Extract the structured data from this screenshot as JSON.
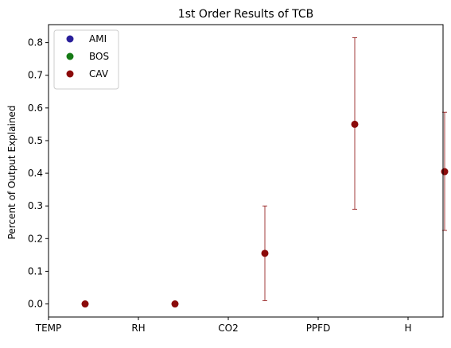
{
  "chart_data": {
    "type": "scatter",
    "title": "1st Order Results of TCB",
    "xlabel": "",
    "ylabel": "Percent of Output Explained",
    "categories": [
      "TEMP",
      "RH",
      "CO2",
      "PPFD",
      "H"
    ],
    "yticks": [
      "0.0",
      "0.1",
      "0.2",
      "0.3",
      "0.4",
      "0.5",
      "0.6",
      "0.7",
      "0.8"
    ],
    "ylim": [
      -0.04,
      0.855
    ],
    "grid": false,
    "legend_position": "top-left",
    "series": [
      {
        "name": "AMI",
        "color": "#2a1f9a",
        "points": []
      },
      {
        "name": "BOS",
        "color": "#157a15",
        "points": []
      },
      {
        "name": "CAV",
        "color": "#8b0a0a",
        "points": [
          {
            "x": "TEMP",
            "y": 0.0,
            "err_low": 0.0,
            "err_high": 0.0
          },
          {
            "x": "RH",
            "y": 0.0,
            "err_low": 0.0,
            "err_high": 0.0
          },
          {
            "x": "CO2",
            "y": 0.155,
            "err_low": 0.01,
            "err_high": 0.3
          },
          {
            "x": "PPFD",
            "y": 0.55,
            "err_low": 0.29,
            "err_high": 0.815
          },
          {
            "x": "H",
            "y": 0.405,
            "err_low": 0.225,
            "err_high": 0.587
          }
        ]
      }
    ]
  }
}
